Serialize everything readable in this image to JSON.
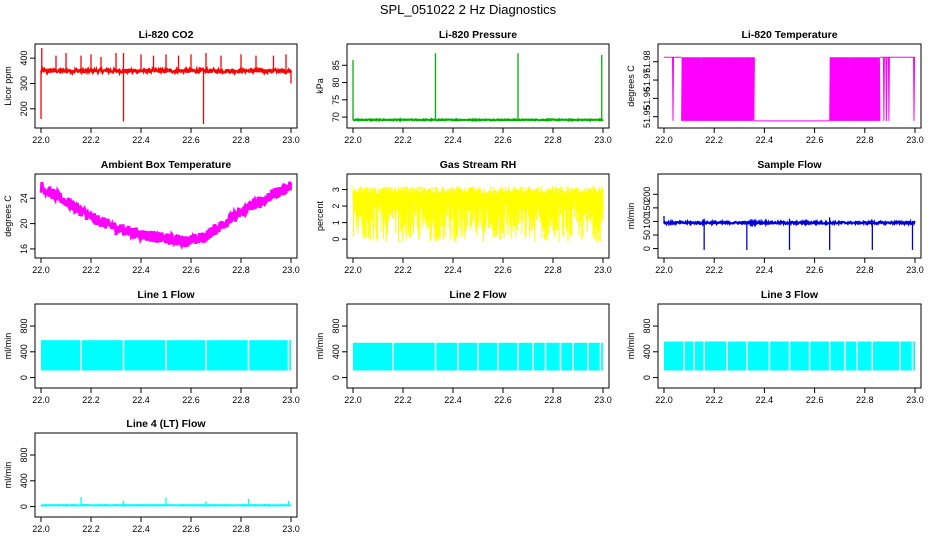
{
  "figure_title": "SPL_051022  2 Hz Diagnostics",
  "chart_data": [
    {
      "type": "line",
      "title": "Li-820 CO2",
      "ylabel": "Licor ppm",
      "color": "#ff0000",
      "xlim": [
        22.0,
        23.0
      ],
      "ylim": [
        140,
        440
      ],
      "xticks": [
        "22.0",
        "22.2",
        "22.4",
        "22.6",
        "22.8",
        "23.0"
      ],
      "yticks": [
        200,
        300,
        400
      ],
      "series": [
        {
          "baseline": 350,
          "noise": 8,
          "spikes": [
            {
              "x": 22.0,
              "y": 160
            },
            {
              "x": 22.003,
              "y": 440
            },
            {
              "x": 22.06,
              "y": 410
            },
            {
              "x": 22.1,
              "y": 420
            },
            {
              "x": 22.16,
              "y": 410
            },
            {
              "x": 22.2,
              "y": 415
            },
            {
              "x": 22.24,
              "y": 405
            },
            {
              "x": 22.3,
              "y": 420
            },
            {
              "x": 22.33,
              "y": 150
            },
            {
              "x": 22.33,
              "y": 420
            },
            {
              "x": 22.4,
              "y": 415
            },
            {
              "x": 22.45,
              "y": 410
            },
            {
              "x": 22.5,
              "y": 415
            },
            {
              "x": 22.55,
              "y": 410
            },
            {
              "x": 22.6,
              "y": 415
            },
            {
              "x": 22.65,
              "y": 140
            },
            {
              "x": 22.66,
              "y": 420
            },
            {
              "x": 22.72,
              "y": 410
            },
            {
              "x": 22.8,
              "y": 415
            },
            {
              "x": 22.86,
              "y": 410
            },
            {
              "x": 22.93,
              "y": 410
            },
            {
              "x": 22.98,
              "y": 415
            },
            {
              "x": 23.0,
              "y": 300
            }
          ]
        }
      ]
    },
    {
      "type": "line",
      "title": "Li-820 Pressure",
      "ylabel": "kPa",
      "color": "#00b000",
      "xlim": [
        22.0,
        23.0
      ],
      "ylim": [
        68,
        90
      ],
      "xticks": [
        "22.0",
        "22.2",
        "22.4",
        "22.6",
        "22.8",
        "23.0"
      ],
      "yticks": [
        70,
        75,
        80,
        85
      ],
      "series": [
        {
          "baseline": 69.2,
          "noise": 0.15,
          "spikes": [
            {
              "x": 22.0,
              "y": 86.5
            },
            {
              "x": 22.33,
              "y": 88.5
            },
            {
              "x": 22.66,
              "y": 88.5
            },
            {
              "x": 22.995,
              "y": 88.0
            }
          ]
        }
      ]
    },
    {
      "type": "line",
      "title": "Li-820 Temperature",
      "ylabel": "degrees C",
      "color": "#ff00ff",
      "xlim": [
        22.0,
        23.0
      ],
      "ylim": [
        51.946,
        51.9875
      ],
      "xticks": [
        "22.0",
        "22.2",
        "22.4",
        "22.6",
        "22.8",
        "23.0"
      ],
      "yticks": [
        51.95,
        51.96,
        51.97,
        51.98
      ],
      "yticklabels": [
        "51.95",
        "51.96",
        "51.97",
        "51.98"
      ],
      "series": [
        {
          "levels": [
            51.9825,
            51.9477
          ],
          "segments": [
            {
              "x0": 22.0,
              "x1": 22.07,
              "mode": "high"
            },
            {
              "x0": 22.07,
              "x1": 22.15,
              "mode": "osc"
            },
            {
              "x0": 22.15,
              "x1": 22.36,
              "mode": "osc-low"
            },
            {
              "x0": 22.36,
              "x1": 22.66,
              "mode": "low"
            },
            {
              "x0": 22.66,
              "x1": 22.74,
              "mode": "osc-low"
            },
            {
              "x0": 22.74,
              "x1": 22.86,
              "mode": "osc"
            },
            {
              "x0": 22.86,
              "x1": 23.0,
              "mode": "high"
            }
          ]
        }
      ]
    },
    {
      "type": "line",
      "title": "Ambient Box Temperature",
      "ylabel": "degrees C",
      "color": "#ff00ff",
      "xlim": [
        22.0,
        23.0
      ],
      "ylim": [
        15.2,
        27.2
      ],
      "xticks": [
        "22.0",
        "22.2",
        "22.4",
        "22.6",
        "22.8",
        "23.0"
      ],
      "yticks": [
        16,
        20,
        24
      ],
      "series": [
        {
          "band": 0.9,
          "points": [
            {
              "x": 22.0,
              "y": 25.8
            },
            {
              "x": 22.1,
              "y": 23.5
            },
            {
              "x": 22.2,
              "y": 21.0
            },
            {
              "x": 22.3,
              "y": 19.3
            },
            {
              "x": 22.4,
              "y": 18.3
            },
            {
              "x": 22.5,
              "y": 17.6
            },
            {
              "x": 22.58,
              "y": 17.2
            },
            {
              "x": 22.65,
              "y": 17.8
            },
            {
              "x": 22.75,
              "y": 20.5
            },
            {
              "x": 22.85,
              "y": 23.0
            },
            {
              "x": 23.0,
              "y": 26.0
            }
          ]
        }
      ]
    },
    {
      "type": "line",
      "title": "Gas Stream RH",
      "ylabel": "percent",
      "color": "#ffff00",
      "xlim": [
        22.0,
        23.0
      ],
      "ylim": [
        -0.9,
        3.7
      ],
      "xticks": [
        "22.0",
        "22.2",
        "22.4",
        "22.6",
        "22.8",
        "23.0"
      ],
      "yticks": [
        0,
        1,
        2,
        3
      ],
      "series": [
        {
          "top": 3.2,
          "bottom": -0.2,
          "center": 2.0
        }
      ]
    },
    {
      "type": "line",
      "title": "Sample Flow",
      "ylabel": "ml/min",
      "color": "#0000dd",
      "xlim": [
        22.0,
        23.0
      ],
      "ylim": [
        -20,
        260
      ],
      "xticks": [
        "22.0",
        "22.2",
        "22.4",
        "22.6",
        "22.8",
        "23.0"
      ],
      "yticks": [
        0,
        50,
        100,
        150,
        200
      ],
      "series": [
        {
          "baseline": 95,
          "noise": 4,
          "spikes": [
            {
              "x": 22.0,
              "y": 120
            },
            {
              "x": 22.16,
              "y": -5
            },
            {
              "x": 22.16,
              "y": 110
            },
            {
              "x": 22.33,
              "y": -5
            },
            {
              "x": 22.5,
              "y": -5
            },
            {
              "x": 22.5,
              "y": 110
            },
            {
              "x": 22.66,
              "y": -5
            },
            {
              "x": 22.66,
              "y": 115
            },
            {
              "x": 22.83,
              "y": -5
            },
            {
              "x": 22.99,
              "y": -5
            }
          ]
        }
      ]
    },
    {
      "type": "line",
      "title": "Line 1 Flow",
      "ylabel": "ml/min",
      "color": "#00ffff",
      "xlim": [
        22.0,
        23.0
      ],
      "ylim": [
        -100,
        1080
      ],
      "xticks": [
        "22.0",
        "22.2",
        "22.4",
        "22.6",
        "22.8",
        "23.0"
      ],
      "yticks": [
        0,
        400,
        800
      ],
      "series": [
        {
          "top": 580,
          "bottom": 110,
          "gaps": [
            22.16,
            22.33,
            22.5,
            22.66,
            22.83,
            22.99
          ]
        }
      ]
    },
    {
      "type": "line",
      "title": "Line 2 Flow",
      "ylabel": "ml/min",
      "color": "#00ffff",
      "xlim": [
        22.0,
        23.0
      ],
      "ylim": [
        -100,
        1080
      ],
      "xticks": [
        "22.0",
        "22.2",
        "22.4",
        "22.6",
        "22.8",
        "23.0"
      ],
      "yticks": [
        0,
        400,
        800
      ],
      "series": [
        {
          "top": 540,
          "bottom": 110,
          "gaps": [
            22.16,
            22.33,
            22.42,
            22.5,
            22.58,
            22.66,
            22.72,
            22.77,
            22.83,
            22.88,
            22.94,
            22.99
          ]
        }
      ]
    },
    {
      "type": "line",
      "title": "Line 3 Flow",
      "ylabel": "ml/min",
      "color": "#00ffff",
      "xlim": [
        22.0,
        23.0
      ],
      "ylim": [
        -100,
        1080
      ],
      "xticks": [
        "22.0",
        "22.2",
        "22.4",
        "22.6",
        "22.8",
        "23.0"
      ],
      "yticks": [
        0,
        400,
        800
      ],
      "series": [
        {
          "top": 560,
          "bottom": 110,
          "gaps": [
            22.08,
            22.12,
            22.16,
            22.25,
            22.33,
            22.42,
            22.5,
            22.58,
            22.66,
            22.72,
            22.77,
            22.83,
            22.94,
            22.99
          ]
        }
      ]
    },
    {
      "type": "line",
      "title": "Line 4 (LT) Flow",
      "ylabel": "ml/min",
      "color": "#00ffff",
      "xlim": [
        22.0,
        23.0
      ],
      "ylim": [
        -100,
        1080
      ],
      "xticks": [
        "22.0",
        "22.2",
        "22.4",
        "22.6",
        "22.8",
        "23.0"
      ],
      "yticks": [
        0,
        400,
        800
      ],
      "series": [
        {
          "baseline": 20,
          "noise": 4,
          "spikes": [
            {
              "x": 22.16,
              "y": 150
            },
            {
              "x": 22.33,
              "y": 90
            },
            {
              "x": 22.5,
              "y": 140
            },
            {
              "x": 22.66,
              "y": 80
            },
            {
              "x": 22.83,
              "y": 120
            },
            {
              "x": 22.99,
              "y": 90
            }
          ]
        }
      ]
    }
  ]
}
